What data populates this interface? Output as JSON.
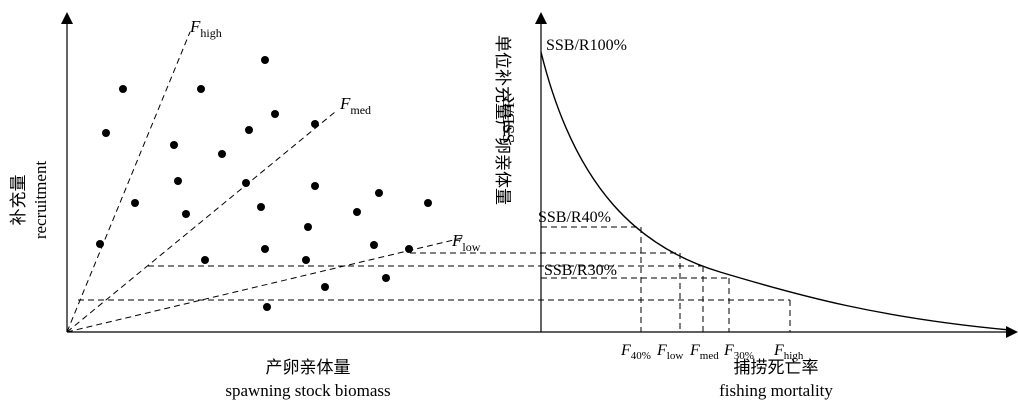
{
  "left_panel": {
    "y_label_cn": "补充量",
    "y_label_en": "recruitment",
    "x_label_cn": "产卵亲体量",
    "x_label_en": "spawning stock biomass",
    "line_labels": [
      {
        "base": "F",
        "sub": "high"
      },
      {
        "base": "F",
        "sub": "med"
      },
      {
        "base": "F",
        "sub": "low"
      }
    ]
  },
  "right_panel": {
    "y_label_cn": "单位补充量产卵亲体量",
    "y_label_en": "SSB/R",
    "curve_labels": [
      "SSB/R100%",
      "SSB/R40%",
      "SSB/R30%"
    ],
    "x_label_cn": "捕捞死亡率",
    "x_label_en": "fishing mortality",
    "tick_labels": [
      {
        "base": "F",
        "sub": "40%"
      },
      {
        "base": "F",
        "sub": "low"
      },
      {
        "base": "F",
        "sub": "med"
      },
      {
        "base": "F",
        "sub": "30%"
      },
      {
        "base": "F",
        "sub": "high"
      }
    ]
  }
}
